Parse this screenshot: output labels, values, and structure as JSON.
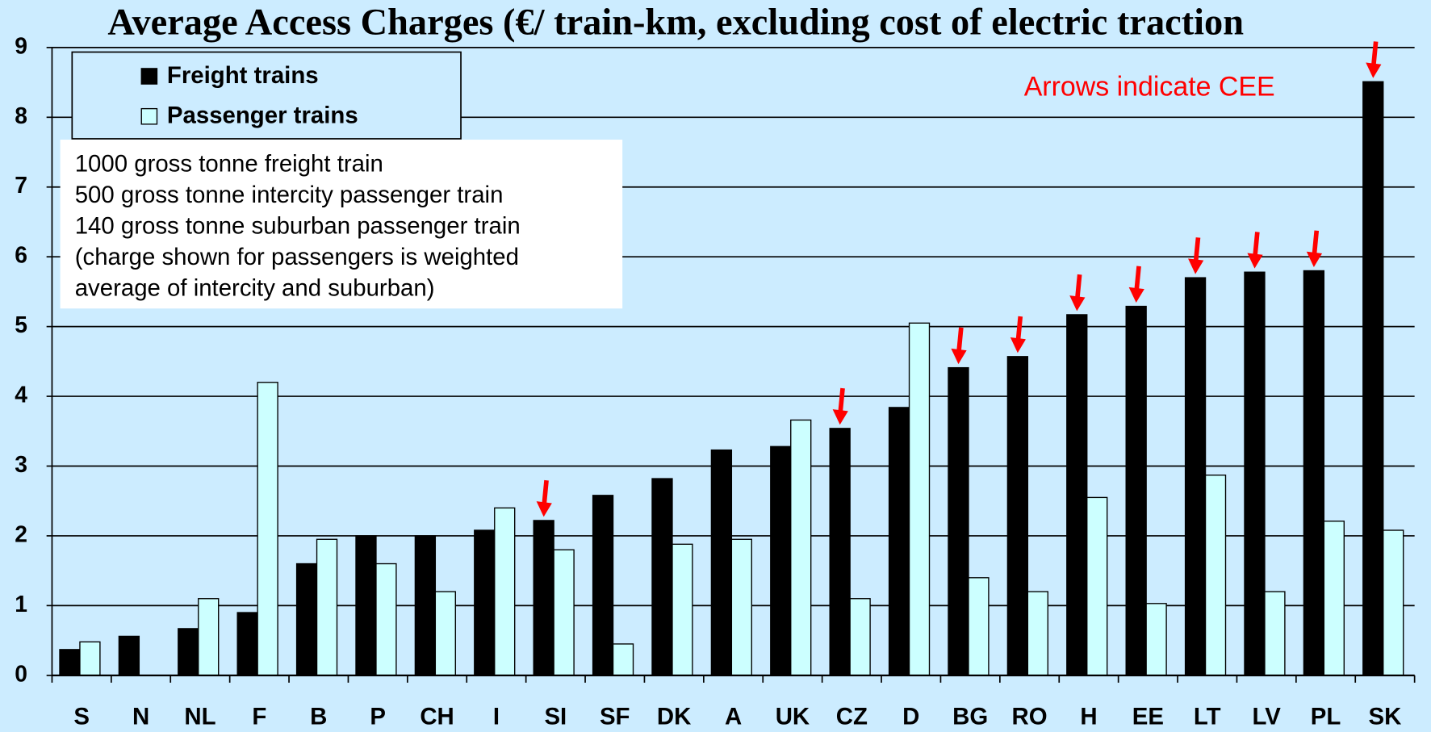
{
  "chart_data": {
    "type": "bar",
    "title": "Average Access Charges (€/ train-km, excluding cost of electric traction",
    "annotation": "Arrows indicate CEE",
    "notes": [
      "1000 gross tonne freight train",
      "500 gross tonne intercity passenger train",
      "140 gross tonne suburban passenger train",
      "(charge shown for passengers is weighted",
      "average of intercity and suburban)"
    ],
    "categories": [
      "S",
      "N",
      "NL",
      "F",
      "B",
      "P",
      "CH",
      "I",
      "SI",
      "SF",
      "DK",
      "A",
      "UK",
      "CZ",
      "D",
      "BG",
      "RO",
      "H",
      "EE",
      "LT",
      "LV",
      "PL",
      "SK"
    ],
    "cee": [
      false,
      false,
      false,
      false,
      false,
      false,
      false,
      false,
      true,
      false,
      false,
      false,
      false,
      true,
      false,
      true,
      true,
      true,
      true,
      true,
      true,
      true,
      true
    ],
    "series": [
      {
        "name": "Freight trains",
        "color": "#000000",
        "values": [
          0.37,
          0.56,
          0.67,
          0.9,
          1.6,
          2.0,
          2.0,
          2.08,
          2.22,
          2.58,
          2.82,
          3.23,
          3.28,
          3.54,
          3.84,
          4.41,
          4.57,
          5.17,
          5.29,
          5.7,
          5.78,
          5.8,
          8.51
        ]
      },
      {
        "name": "Passenger trains",
        "color": "#ccffff",
        "values": [
          0.48,
          null,
          1.1,
          4.2,
          1.95,
          1.6,
          1.2,
          2.4,
          1.8,
          0.45,
          1.88,
          1.95,
          3.66,
          1.1,
          5.05,
          1.4,
          1.2,
          2.55,
          1.03,
          2.87,
          1.2,
          2.21,
          2.08
        ]
      }
    ],
    "ylim": [
      0,
      9
    ],
    "yticks": [
      0,
      1,
      2,
      3,
      4,
      5,
      6,
      7,
      8,
      9
    ],
    "grid": true,
    "annotation_color": "#ff0000"
  }
}
